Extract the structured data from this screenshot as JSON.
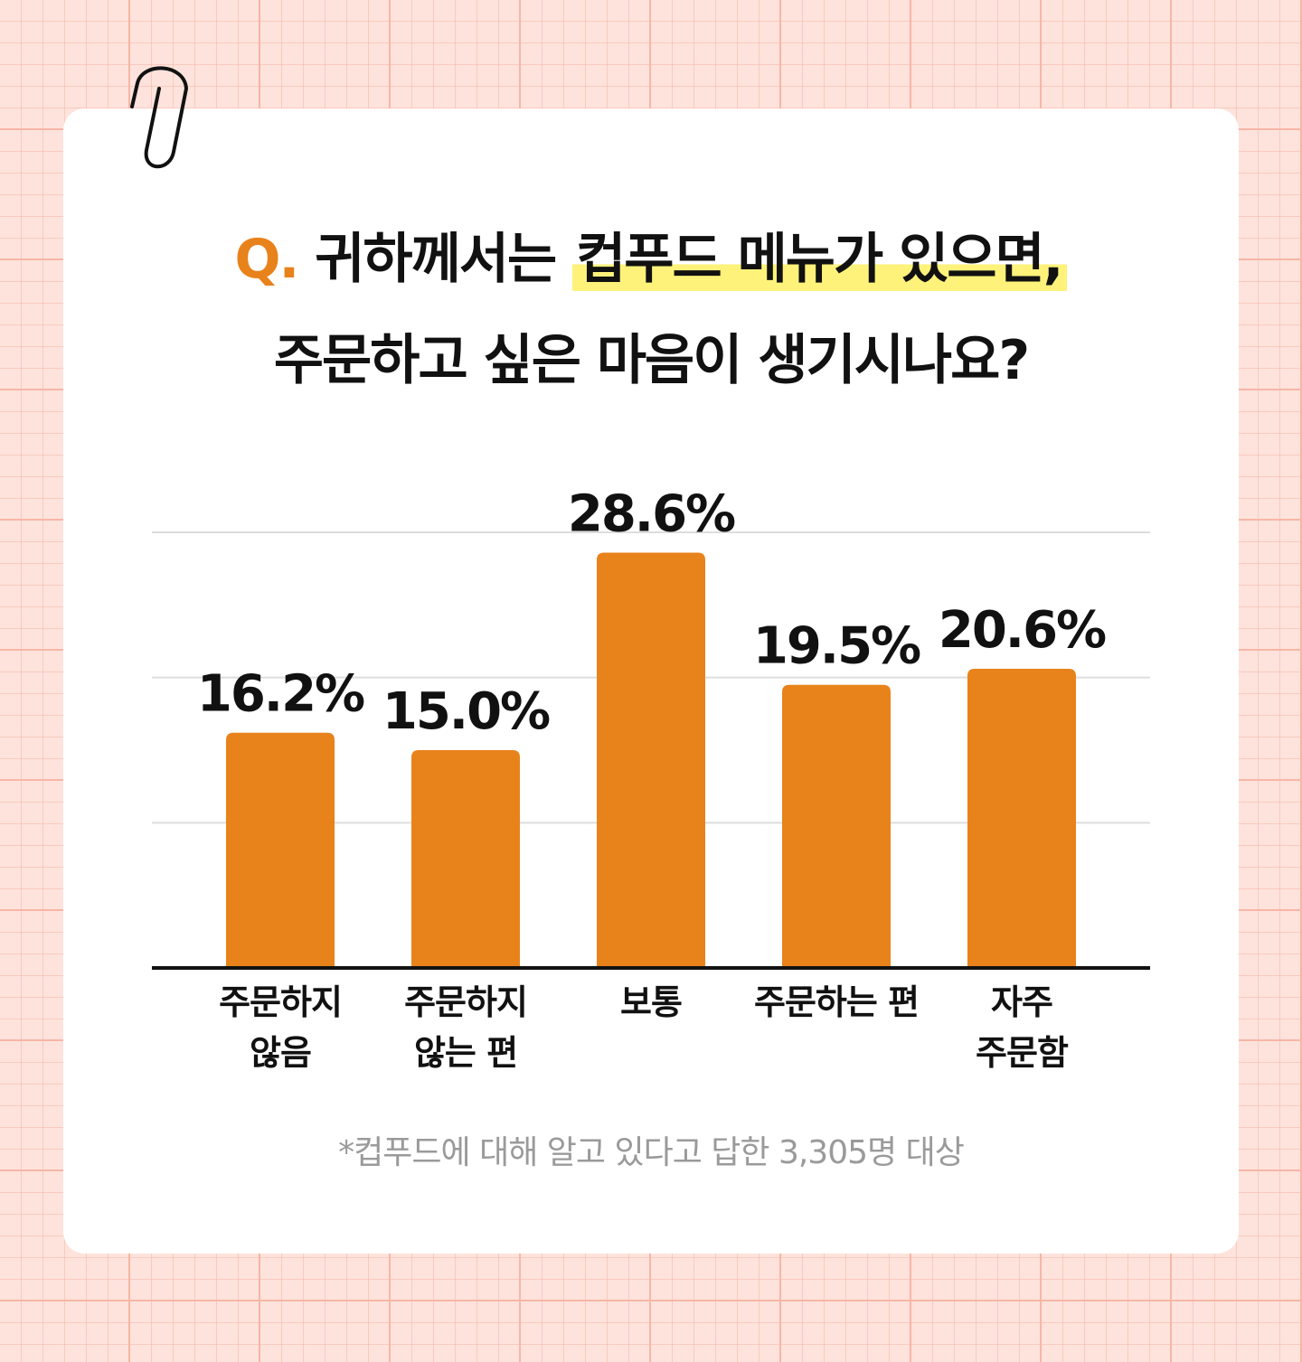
{
  "title": {
    "q_prefix": "Q.",
    "line1_plain": "귀하께서는",
    "line1_highlight": "컵푸드 메뉴가 있으면,",
    "line2": "주문하고 싶은 마음이 생기시나요?"
  },
  "colors": {
    "bar": "#E8821A",
    "accent": "#E8821A",
    "highlight": "#FFF27A",
    "grid": "#DDDDDD",
    "axis": "#111111"
  },
  "chart_data": {
    "type": "bar",
    "categories": [
      [
        "주문하지",
        "않음"
      ],
      [
        "주문하지",
        "않는 편"
      ],
      [
        "보통"
      ],
      [
        "주문하는 편"
      ],
      [
        "자주",
        "주문함"
      ]
    ],
    "values": [
      16.2,
      15.0,
      28.6,
      19.5,
      20.6
    ],
    "value_labels": [
      "16.2%",
      "15.0%",
      "28.6%",
      "19.5%",
      "20.6%"
    ],
    "unit": "%",
    "ylim": [
      0,
      30
    ],
    "grid": true,
    "legend": false
  },
  "footnote": "*컵푸드에 대해 알고 있다고 답한 3,305명 대상",
  "icons": {
    "decoration": "paperclip-icon"
  }
}
